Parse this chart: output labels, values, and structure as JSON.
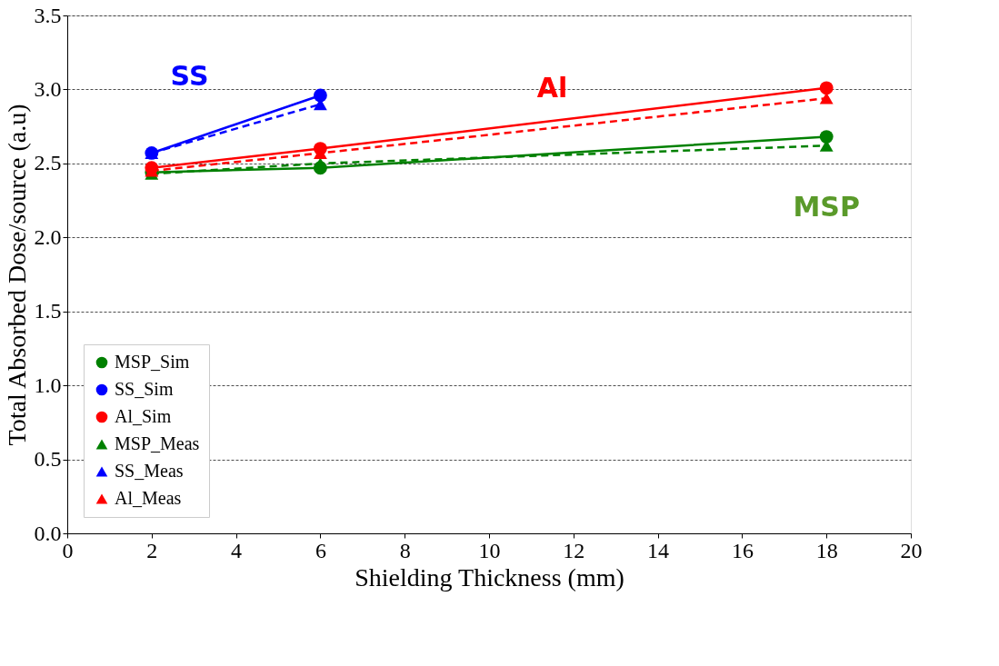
{
  "chart_data": {
    "type": "line",
    "xlabel": "Shielding Thickness (mm)",
    "ylabel": "Total Absorbed Dose/source (a.u)",
    "x": [
      2,
      6,
      18
    ],
    "series": [
      {
        "name": "MSP_Sim",
        "color": "#008000",
        "values": [
          2.44,
          2.47,
          2.68
        ],
        "marker": "circle",
        "line_style": "solid"
      },
      {
        "name": "SS_Sim",
        "color": "#0000ff",
        "values": [
          2.57,
          2.96,
          null
        ],
        "marker": "circle",
        "line_style": "solid"
      },
      {
        "name": "Al_Sim",
        "color": "#ff0000",
        "values": [
          2.47,
          2.6,
          3.01
        ],
        "marker": "circle",
        "line_style": "solid"
      },
      {
        "name": "MSP_Meas",
        "color": "#008000",
        "values": [
          2.43,
          2.5,
          2.62
        ],
        "marker": "triangle",
        "line_style": "dashed"
      },
      {
        "name": "SS_Meas",
        "color": "#0000ff",
        "values": [
          2.57,
          2.9,
          null
        ],
        "marker": "triangle",
        "line_style": "dashed"
      },
      {
        "name": "Al_Meas",
        "color": "#ff0000",
        "values": [
          2.45,
          2.57,
          2.94
        ],
        "marker": "triangle",
        "line_style": "dashed"
      }
    ],
    "annotations": [
      "SS",
      "Al",
      "MSP"
    ],
    "xlim": [
      0,
      20
    ],
    "xticks": [
      0,
      2,
      4,
      6,
      8,
      10,
      12,
      14,
      16,
      18,
      20
    ],
    "ylim": [
      0,
      3.5
    ],
    "yticks": [
      {
        "value": 0,
        "label": "0.0"
      },
      0.5,
      {
        "value": 1,
        "label": "1.0"
      },
      1.5,
      {
        "value": 2,
        "label": "2.0"
      },
      2.5,
      {
        "value": 3,
        "label": "3.0"
      },
      3.5
    ],
    "grid": "y",
    "legend": "bottom left"
  }
}
